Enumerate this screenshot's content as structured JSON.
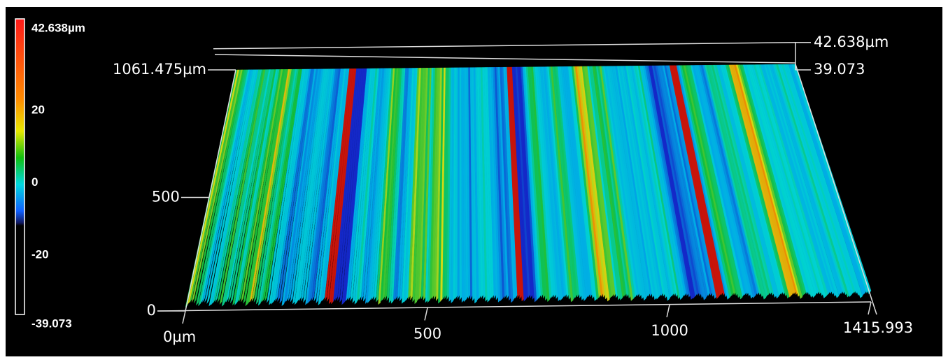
{
  "chart_data": {
    "type": "surface3d",
    "colorbar": {
      "lim": [
        -39.073,
        42.638
      ],
      "ticks": [
        {
          "value": 42.638,
          "label": "42.638µm"
        },
        20,
        0,
        -20,
        -39.073
      ]
    },
    "xlim": [
      0,
      1415.993
    ],
    "xticks": [
      {
        "value": 0,
        "label": "0µm"
      },
      500,
      1000,
      1415.993
    ],
    "ylim": [
      0,
      1061.475
    ],
    "yticks": [
      0,
      500,
      {
        "value": 1061.475,
        "label": "1061.475µm"
      }
    ],
    "zticks": [
      {
        "value": 42.638,
        "label": "42.638µm"
      },
      39.073
    ]
  }
}
